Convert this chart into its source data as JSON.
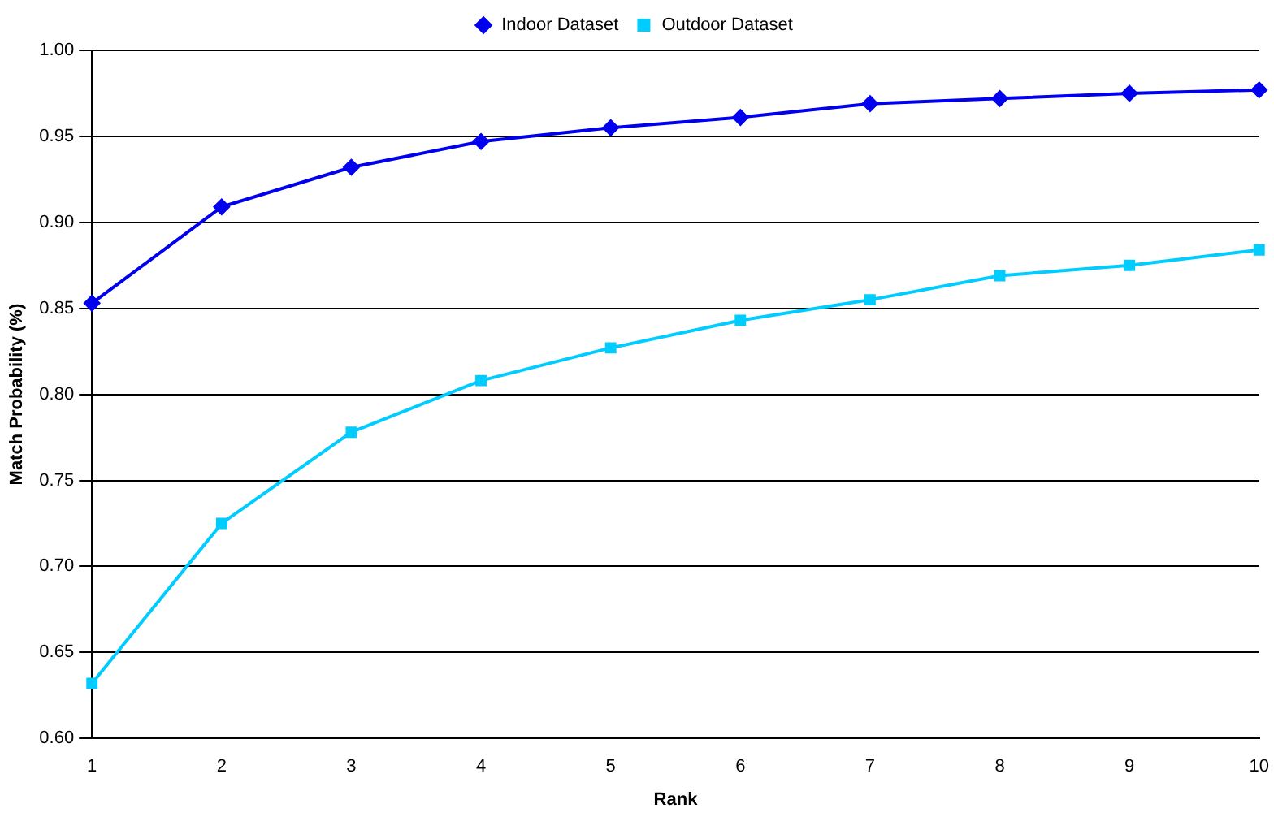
{
  "chart_data": {
    "type": "line",
    "xlabel": "Rank",
    "ylabel": "Match Probability (%)",
    "categories": [
      "1",
      "2",
      "3",
      "4",
      "5",
      "6",
      "7",
      "8",
      "9",
      "10"
    ],
    "series": [
      {
        "name": "Indoor Dataset",
        "color": "#0000ee",
        "marker": "diamond",
        "values": [
          0.853,
          0.909,
          0.932,
          0.947,
          0.955,
          0.961,
          0.969,
          0.972,
          0.975,
          0.977
        ]
      },
      {
        "name": "Outdoor Dataset",
        "color": "#00ccff",
        "marker": "square",
        "values": [
          0.632,
          0.725,
          0.778,
          0.808,
          0.827,
          0.843,
          0.855,
          0.869,
          0.875,
          0.884
        ]
      }
    ],
    "ylim": [
      0.6,
      1.0
    ],
    "yticks": [
      {
        "value": 0.6,
        "label": "0.60"
      },
      {
        "value": 0.65,
        "label": "0.65"
      },
      {
        "value": 0.7,
        "label": "0.70"
      },
      {
        "value": 0.75,
        "label": "0.75"
      },
      {
        "value": 0.8,
        "label": "0.80"
      },
      {
        "value": 0.85,
        "label": "0.85"
      },
      {
        "value": 0.9,
        "label": "0.90"
      },
      {
        "value": 0.95,
        "label": "0.95"
      },
      {
        "value": 1.0,
        "label": "1.00"
      }
    ],
    "grid": "y",
    "legend": "top",
    "line_style": "solid"
  }
}
